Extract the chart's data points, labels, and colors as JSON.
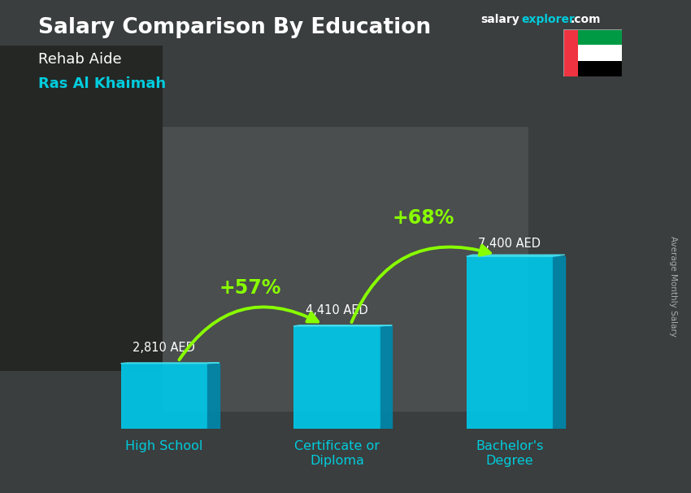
{
  "title": "Salary Comparison By Education",
  "subtitle1": "Rehab Aide",
  "subtitle2": "Ras Al Khaimah",
  "ylabel": "Average Monthly Salary",
  "categories": [
    "High School",
    "Certificate or\nDiploma",
    "Bachelor's\nDegree"
  ],
  "values": [
    2810,
    4410,
    7400
  ],
  "value_labels": [
    "2,810 AED",
    "4,410 AED",
    "7,400 AED"
  ],
  "pct_labels": [
    "+57%",
    "+68%"
  ],
  "bar_color_face": "#00c8e8",
  "bar_color_side": "#0088aa",
  "bar_color_top": "#44ddee",
  "bg_color": "#4a5a60",
  "title_color": "#ffffff",
  "subtitle1_color": "#ffffff",
  "subtitle2_color": "#00ccdd",
  "value_label_color": "#ffffff",
  "pct_color": "#88ff00",
  "arrow_color": "#88ff00",
  "xticklabel_color": "#00ccdd",
  "brand_salary_color": "#ffffff",
  "brand_explorer_color": "#00ccdd",
  "brand_com_color": "#ffffff",
  "ylabel_color": "#aaaaaa",
  "figsize": [
    8.5,
    6.06
  ],
  "dpi": 100
}
